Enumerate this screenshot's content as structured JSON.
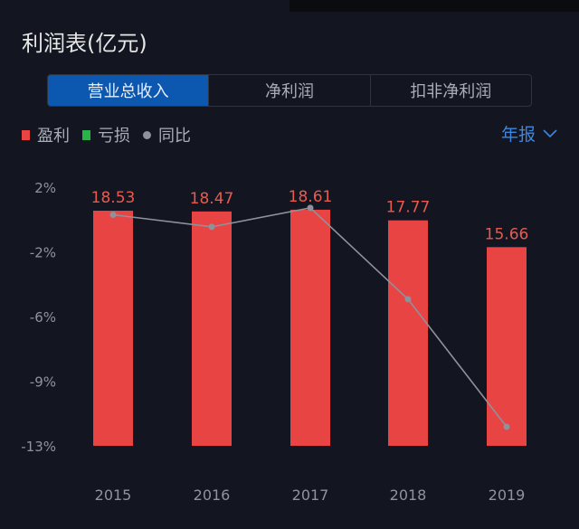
{
  "title": "利润表(亿元)",
  "tabs": [
    {
      "label": "营业总收入",
      "active": true
    },
    {
      "label": "净利润",
      "active": false
    },
    {
      "label": "扣非净利润",
      "active": false
    }
  ],
  "legend": {
    "profit": {
      "label": "盈利",
      "color": "#e84444"
    },
    "loss": {
      "label": "亏损",
      "color": "#27b54a"
    },
    "yoy": {
      "label": "同比",
      "color": "#8d929c"
    }
  },
  "period_selector": {
    "label": "年报",
    "icon": "chevron-down-icon"
  },
  "chart_data": {
    "type": "bar",
    "categories": [
      "2015",
      "2016",
      "2017",
      "2018",
      "2019"
    ],
    "series": [
      {
        "name": "盈利",
        "type": "bar",
        "values": [
          18.53,
          18.47,
          18.61,
          17.77,
          15.66
        ],
        "color": "#e84444"
      },
      {
        "name": "同比",
        "type": "line",
        "values": [
          0.4,
          -0.3,
          0.8,
          -4.5,
          -11.9
        ],
        "unit": "%",
        "color": "#8d929c"
      }
    ],
    "y_ticks": [
      "2%",
      "-2%",
      "-6%",
      "-9%",
      "-13%"
    ],
    "ylim_percent": [
      -13,
      2
    ],
    "grid": false
  }
}
